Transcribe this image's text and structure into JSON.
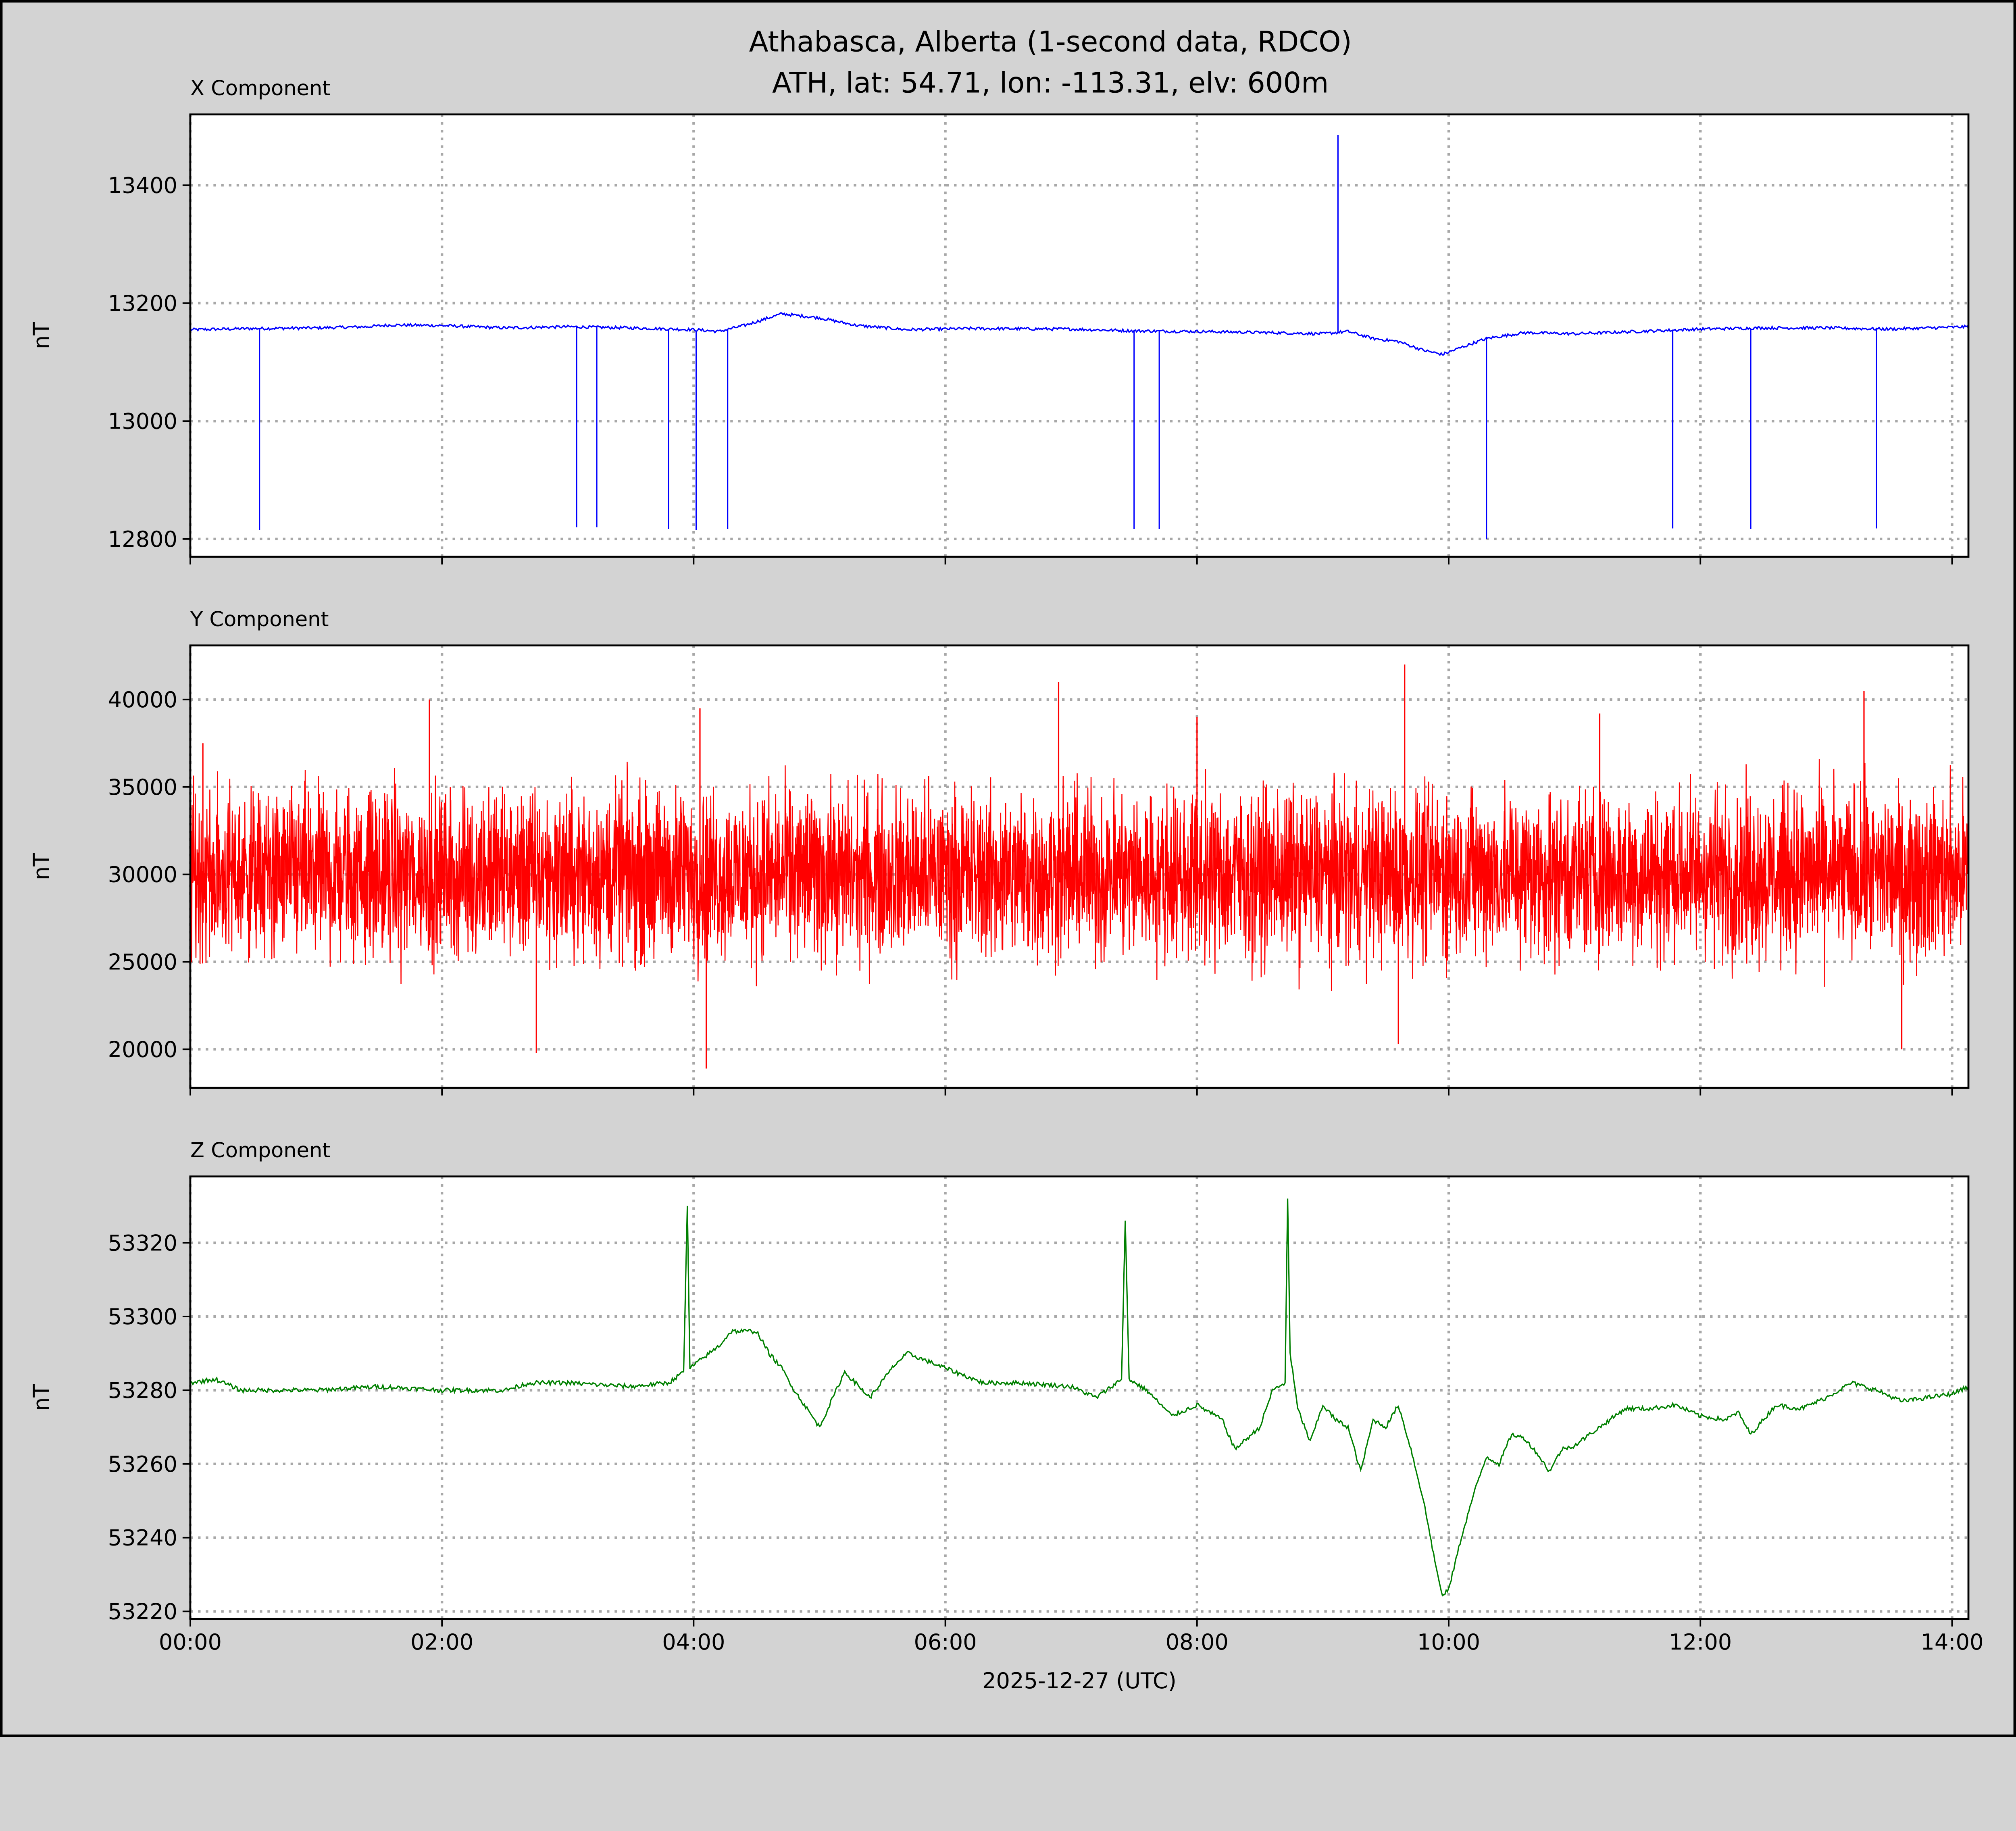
{
  "chart_data": [
    {
      "type": "line",
      "title": "X Component",
      "ylabel": "nT",
      "color": "#0000ff",
      "xlim": [
        0,
        14.13
      ],
      "ylim": [
        12770,
        13520
      ],
      "yticks": [
        12800,
        13000,
        13200,
        13400
      ],
      "grid": true,
      "baseline": [
        [
          0,
          13155
        ],
        [
          0.5,
          13157
        ],
        [
          1,
          13158
        ],
        [
          1.4,
          13160
        ],
        [
          1.6,
          13163
        ],
        [
          2,
          13162
        ],
        [
          2.5,
          13158
        ],
        [
          3,
          13160
        ],
        [
          3.5,
          13158
        ],
        [
          4,
          13155
        ],
        [
          4.2,
          13152
        ],
        [
          4.4,
          13162
        ],
        [
          4.7,
          13182
        ],
        [
          5,
          13175
        ],
        [
          5.3,
          13162
        ],
        [
          5.7,
          13155
        ],
        [
          6.2,
          13157
        ],
        [
          7,
          13156
        ],
        [
          7.5,
          13153
        ],
        [
          8,
          13152
        ],
        [
          8.6,
          13150
        ],
        [
          9,
          13148
        ],
        [
          9.2,
          13152
        ],
        [
          9.4,
          13140
        ],
        [
          9.6,
          13135
        ],
        [
          9.8,
          13120
        ],
        [
          9.95,
          13113
        ],
        [
          10.1,
          13125
        ],
        [
          10.3,
          13140
        ],
        [
          10.6,
          13150
        ],
        [
          11,
          13148
        ],
        [
          11.5,
          13152
        ],
        [
          12,
          13156
        ],
        [
          12.5,
          13158
        ],
        [
          13,
          13158
        ],
        [
          13.5,
          13156
        ],
        [
          14.13,
          13160
        ]
      ],
      "spikes": [
        [
          0.55,
          12815
        ],
        [
          3.07,
          12820
        ],
        [
          3.23,
          12820
        ],
        [
          3.8,
          12817
        ],
        [
          4.02,
          12815
        ],
        [
          4.27,
          12817
        ],
        [
          7.5,
          12817
        ],
        [
          7.7,
          12817
        ],
        [
          9.12,
          13485
        ],
        [
          10.3,
          12800
        ],
        [
          11.78,
          12818
        ],
        [
          12.4,
          12817
        ],
        [
          13.4,
          12818
        ]
      ]
    },
    {
      "type": "line",
      "title": "Y Component",
      "ylabel": "nT",
      "color": "#ff0000",
      "xlim": [
        0,
        14.13
      ],
      "ylim": [
        17800,
        43090
      ],
      "yticks": [
        20000,
        25000,
        30000,
        35000,
        40000
      ],
      "grid": true,
      "noise": {
        "mean": 30000,
        "low": 23000,
        "high": 37000,
        "points": 6000
      },
      "spikes": [
        [
          0.1,
          37500
        ],
        [
          1.9,
          40000
        ],
        [
          2.75,
          19800
        ],
        [
          4.05,
          39500
        ],
        [
          4.1,
          18900
        ],
        [
          6.9,
          41000
        ],
        [
          8.0,
          39000
        ],
        [
          9.6,
          20300
        ],
        [
          9.65,
          42000
        ],
        [
          11.2,
          39200
        ],
        [
          13.3,
          40500
        ],
        [
          13.6,
          20000
        ]
      ]
    },
    {
      "type": "line",
      "title": "Z Component",
      "ylabel": "nT",
      "color": "#008000",
      "xlabel": "2025-12-27 (UTC)",
      "xlim": [
        0,
        14.13
      ],
      "ylim": [
        53218,
        53338
      ],
      "yticks": [
        53220,
        53240,
        53260,
        53280,
        53300,
        53320
      ],
      "xticks": [
        0,
        2,
        4,
        6,
        8,
        10,
        12,
        14
      ],
      "xticklabels": [
        "00:00",
        "02:00",
        "04:00",
        "06:00",
        "08:00",
        "10:00",
        "12:00",
        "14:00"
      ],
      "grid": true,
      "values": [
        [
          0,
          53282
        ],
        [
          0.2,
          53283
        ],
        [
          0.4,
          53280
        ],
        [
          1,
          53280
        ],
        [
          1.5,
          53281
        ],
        [
          2,
          53280
        ],
        [
          2.5,
          53280
        ],
        [
          2.7,
          53282
        ],
        [
          3,
          53282
        ],
        [
          3.5,
          53281
        ],
        [
          3.8,
          53282
        ],
        [
          3.92,
          53285
        ],
        [
          3.95,
          53330
        ],
        [
          3.97,
          53286
        ],
        [
          4.2,
          53292
        ],
        [
          4.3,
          53296
        ],
        [
          4.5,
          53296
        ],
        [
          4.6,
          53290
        ],
        [
          4.7,
          53286
        ],
        [
          4.8,
          53280
        ],
        [
          5.0,
          53270
        ],
        [
          5.2,
          53285
        ],
        [
          5.4,
          53278
        ],
        [
          5.6,
          53287
        ],
        [
          5.7,
          53290
        ],
        [
          6.0,
          53286
        ],
        [
          6.3,
          53282
        ],
        [
          6.6,
          53282
        ],
        [
          7.0,
          53281
        ],
        [
          7.2,
          53278
        ],
        [
          7.4,
          53283
        ],
        [
          7.43,
          53326
        ],
        [
          7.46,
          53283
        ],
        [
          7.6,
          53280
        ],
        [
          7.8,
          53273
        ],
        [
          8.0,
          53276
        ],
        [
          8.2,
          53272
        ],
        [
          8.3,
          53264
        ],
        [
          8.5,
          53270
        ],
        [
          8.6,
          53280
        ],
        [
          8.7,
          53282
        ],
        [
          8.72,
          53332
        ],
        [
          8.74,
          53290
        ],
        [
          8.8,
          53275
        ],
        [
          8.9,
          53266
        ],
        [
          9.0,
          53276
        ],
        [
          9.1,
          53272
        ],
        [
          9.2,
          53270
        ],
        [
          9.3,
          53258
        ],
        [
          9.4,
          53272
        ],
        [
          9.5,
          53270
        ],
        [
          9.6,
          53276
        ],
        [
          9.7,
          53264
        ],
        [
          9.8,
          53250
        ],
        [
          9.9,
          53232
        ],
        [
          9.95,
          53224
        ],
        [
          10.0,
          53226
        ],
        [
          10.1,
          53240
        ],
        [
          10.2,
          53252
        ],
        [
          10.3,
          53262
        ],
        [
          10.4,
          53260
        ],
        [
          10.5,
          53268
        ],
        [
          10.6,
          53267
        ],
        [
          10.7,
          53263
        ],
        [
          10.8,
          53258
        ],
        [
          10.9,
          53264
        ],
        [
          11.0,
          53265
        ],
        [
          11.2,
          53270
        ],
        [
          11.4,
          53275
        ],
        [
          11.6,
          53275
        ],
        [
          11.8,
          53276
        ],
        [
          12.0,
          53273
        ],
        [
          12.2,
          53272
        ],
        [
          12.3,
          53274
        ],
        [
          12.4,
          53268
        ],
        [
          12.6,
          53276
        ],
        [
          12.8,
          53275
        ],
        [
          13.0,
          53278
        ],
        [
          13.2,
          53282
        ],
        [
          13.4,
          53280
        ],
        [
          13.6,
          53277
        ],
        [
          13.8,
          53278
        ],
        [
          14.0,
          53279
        ],
        [
          14.13,
          53281
        ]
      ]
    }
  ],
  "figure": {
    "title_line1": "Athabasca, Alberta (1-second data, RDCO)",
    "title_line2": "ATH, lat: 54.71, lon: -113.31, elv: 600m"
  }
}
